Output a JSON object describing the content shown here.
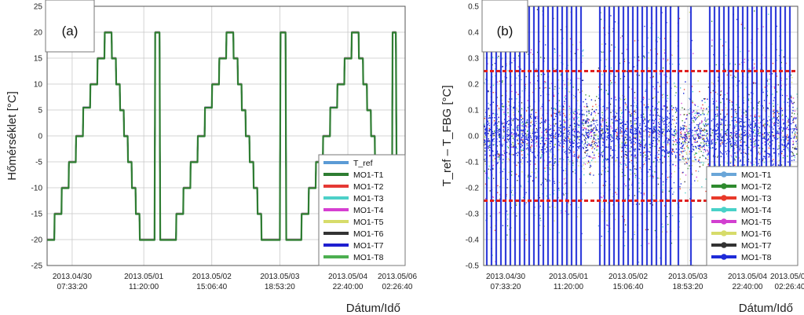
{
  "chart_data": [
    {
      "type": "line",
      "panel_tag": "(a)",
      "ylabel": "Hőmérséklet [°C]",
      "xlabel": "Dátum/Idő",
      "ylim": [
        -25,
        25
      ],
      "yticks": [
        "25",
        "20",
        "15",
        "10",
        "5",
        "0",
        "-5",
        "-10",
        "-15",
        "-20",
        "-25"
      ],
      "xlim": [
        0,
        100
      ],
      "xticks": [
        {
          "x": 7,
          "line1": "2013.04/30",
          "line2": "07:33:20"
        },
        {
          "x": 27,
          "line1": "2013.05/01",
          "line2": "11:20:00"
        },
        {
          "x": 46,
          "line1": "2013.05/02",
          "line2": "15:06:40"
        },
        {
          "x": 65,
          "line1": "2013.05/03",
          "line2": "18:53:20"
        },
        {
          "x": 84,
          "line1": "2013.05/04",
          "line2": "22:40:00"
        },
        {
          "x": 103,
          "line1": "2013.05/06",
          "line2": "02:26:40"
        }
      ],
      "grid": true,
      "legend_position": "bottom-right",
      "series": [
        {
          "name": "T_ref",
          "color": "#5b9bd5"
        },
        {
          "name": "MO1-T1",
          "color": "#2e7d32"
        },
        {
          "name": "MO1-T2",
          "color": "#e53935"
        },
        {
          "name": "MO1-T3",
          "color": "#4dd0c8"
        },
        {
          "name": "MO1-T4",
          "color": "#d63fd1"
        },
        {
          "name": "MO1-T5",
          "color": "#d7dc6a"
        },
        {
          "name": "MO1-T6",
          "color": "#333333"
        },
        {
          "name": "MO1-T7",
          "color": "#1f1fd0"
        },
        {
          "name": "MO1-T8",
          "color": "#4caf50"
        }
      ],
      "profile": [
        [
          0,
          -20
        ],
        [
          2,
          -20
        ],
        [
          2.1,
          -15
        ],
        [
          4,
          -15
        ],
        [
          4.1,
          -10
        ],
        [
          6,
          -10
        ],
        [
          6.1,
          -5
        ],
        [
          8,
          -5
        ],
        [
          8.1,
          0
        ],
        [
          10,
          0
        ],
        [
          10.1,
          5.5
        ],
        [
          12,
          5.5
        ],
        [
          12.1,
          10
        ],
        [
          14,
          10
        ],
        [
          14.1,
          15
        ],
        [
          16,
          15
        ],
        [
          16.1,
          20
        ],
        [
          18,
          20
        ],
        [
          18.1,
          15
        ],
        [
          19.2,
          15
        ],
        [
          19.3,
          10
        ],
        [
          20.3,
          10
        ],
        [
          20.4,
          5
        ],
        [
          21.4,
          5
        ],
        [
          21.5,
          0
        ],
        [
          22.5,
          0
        ],
        [
          22.6,
          -5
        ],
        [
          23.6,
          -5
        ],
        [
          23.7,
          -10
        ],
        [
          24.7,
          -10
        ],
        [
          24.8,
          -15
        ],
        [
          25.8,
          -15
        ],
        [
          25.9,
          -20
        ],
        [
          30,
          -20
        ],
        [
          30.2,
          20
        ],
        [
          31.4,
          20
        ],
        [
          31.6,
          -20
        ],
        [
          36,
          -20
        ],
        [
          36.1,
          -15
        ],
        [
          38,
          -15
        ],
        [
          38.1,
          -10
        ],
        [
          40,
          -10
        ],
        [
          40.1,
          -5
        ],
        [
          42,
          -5
        ],
        [
          42.1,
          0
        ],
        [
          44,
          0
        ],
        [
          44.1,
          5.5
        ],
        [
          46,
          5.5
        ],
        [
          46.1,
          10
        ],
        [
          48,
          10
        ],
        [
          48.1,
          15
        ],
        [
          50,
          15
        ],
        [
          50.1,
          20
        ],
        [
          52,
          20
        ],
        [
          52.1,
          15
        ],
        [
          53.2,
          15
        ],
        [
          53.3,
          10
        ],
        [
          54.3,
          10
        ],
        [
          54.4,
          5
        ],
        [
          55.4,
          5
        ],
        [
          55.5,
          0
        ],
        [
          56.5,
          0
        ],
        [
          56.6,
          -5
        ],
        [
          57.6,
          -5
        ],
        [
          57.7,
          -10
        ],
        [
          58.7,
          -10
        ],
        [
          58.8,
          -15
        ],
        [
          59.8,
          -15
        ],
        [
          59.9,
          -20
        ],
        [
          65,
          -20
        ],
        [
          65.2,
          20
        ],
        [
          66.6,
          20
        ],
        [
          66.8,
          -20
        ],
        [
          71,
          -20
        ],
        [
          71.1,
          -15
        ],
        [
          73,
          -15
        ],
        [
          73.1,
          -10
        ],
        [
          75,
          -10
        ],
        [
          75.1,
          -5
        ],
        [
          77,
          -5
        ],
        [
          77.1,
          0
        ],
        [
          79,
          0
        ],
        [
          79.1,
          5.5
        ],
        [
          81,
          5.5
        ],
        [
          81.1,
          10
        ],
        [
          83,
          10
        ],
        [
          83.1,
          15
        ],
        [
          85,
          15
        ],
        [
          85.1,
          20
        ],
        [
          87,
          20
        ],
        [
          87.1,
          15
        ],
        [
          88.2,
          15
        ],
        [
          88.3,
          10
        ],
        [
          89.3,
          10
        ],
        [
          89.4,
          5
        ],
        [
          90.4,
          5
        ],
        [
          90.5,
          0
        ],
        [
          91.5,
          0
        ],
        [
          91.6,
          -5
        ],
        [
          92.6,
          -5
        ],
        [
          92.7,
          -10
        ],
        [
          93.7,
          -10
        ],
        [
          93.8,
          -15
        ],
        [
          94.6,
          -15
        ],
        [
          94.7,
          -20
        ],
        [
          96.3,
          -20
        ],
        [
          96.5,
          20
        ],
        [
          97.4,
          20
        ],
        [
          97.6,
          -5
        ],
        [
          98.5,
          -5
        ],
        [
          98.7,
          -15
        ],
        [
          100,
          -15
        ]
      ]
    },
    {
      "type": "scatter",
      "panel_tag": "(b)",
      "ylabel": "T_ref – T_FBG [°C]",
      "xlabel": "Dátum/Idő",
      "ylim": [
        -0.5,
        0.5
      ],
      "yticks": [
        "0.5",
        "0.4",
        "0.3",
        "0.2",
        "0.1",
        "0.0",
        "-0.1",
        "-0.2",
        "-0.3",
        "-0.4",
        "-0.5"
      ],
      "xlim": [
        0,
        100
      ],
      "xticks": [
        {
          "x": 7,
          "line1": "2013.04/30",
          "line2": "07:33:20"
        },
        {
          "x": 27,
          "line1": "2013.05/01",
          "line2": "11:20:00"
        },
        {
          "x": 46,
          "line1": "2013.05/02",
          "line2": "15:06:40"
        },
        {
          "x": 65,
          "line1": "2013.05/03",
          "line2": "18:53:20"
        },
        {
          "x": 84,
          "line1": "2013.05/04",
          "line2": "22:40:00"
        },
        {
          "x": 103,
          "line1": "2013.05/06",
          "line2": "02:26:40"
        }
      ],
      "grid": true,
      "reference_lines": [
        0.25,
        -0.25
      ],
      "reference_color": "#e02020",
      "legend_position": "bottom-right",
      "series": [
        {
          "name": "MO1-T1",
          "color": "#6aa6d8"
        },
        {
          "name": "MO1-T2",
          "color": "#2e8b2e"
        },
        {
          "name": "MO1-T3",
          "color": "#e83a2a"
        },
        {
          "name": "MO1-T4",
          "color": "#48d1c8"
        },
        {
          "name": "MO1-T5",
          "color": "#d23fd0"
        },
        {
          "name": "MO1-T6",
          "color": "#d7dc6a"
        },
        {
          "name": "MO1-T7",
          "color": "#333333"
        },
        {
          "name": "MO1-T8",
          "color": "#1e2bd8"
        }
      ],
      "transition_x": [
        1,
        2.5,
        4,
        5.5,
        7,
        8.5,
        10,
        11.5,
        13,
        14.5,
        16,
        17.5,
        19,
        20.5,
        22,
        23.5,
        25,
        26.5,
        28,
        29.5,
        31,
        37,
        38.5,
        40,
        41.5,
        43,
        44.5,
        46,
        47.5,
        49,
        50.5,
        52,
        53.5,
        55,
        56.5,
        58,
        59.5,
        62,
        66,
        72,
        73.5,
        75,
        76.5,
        78,
        79.5,
        81,
        82.5,
        84,
        85.5,
        87,
        88.5,
        90,
        91.5,
        93,
        94.5,
        96,
        97.5
      ]
    }
  ]
}
